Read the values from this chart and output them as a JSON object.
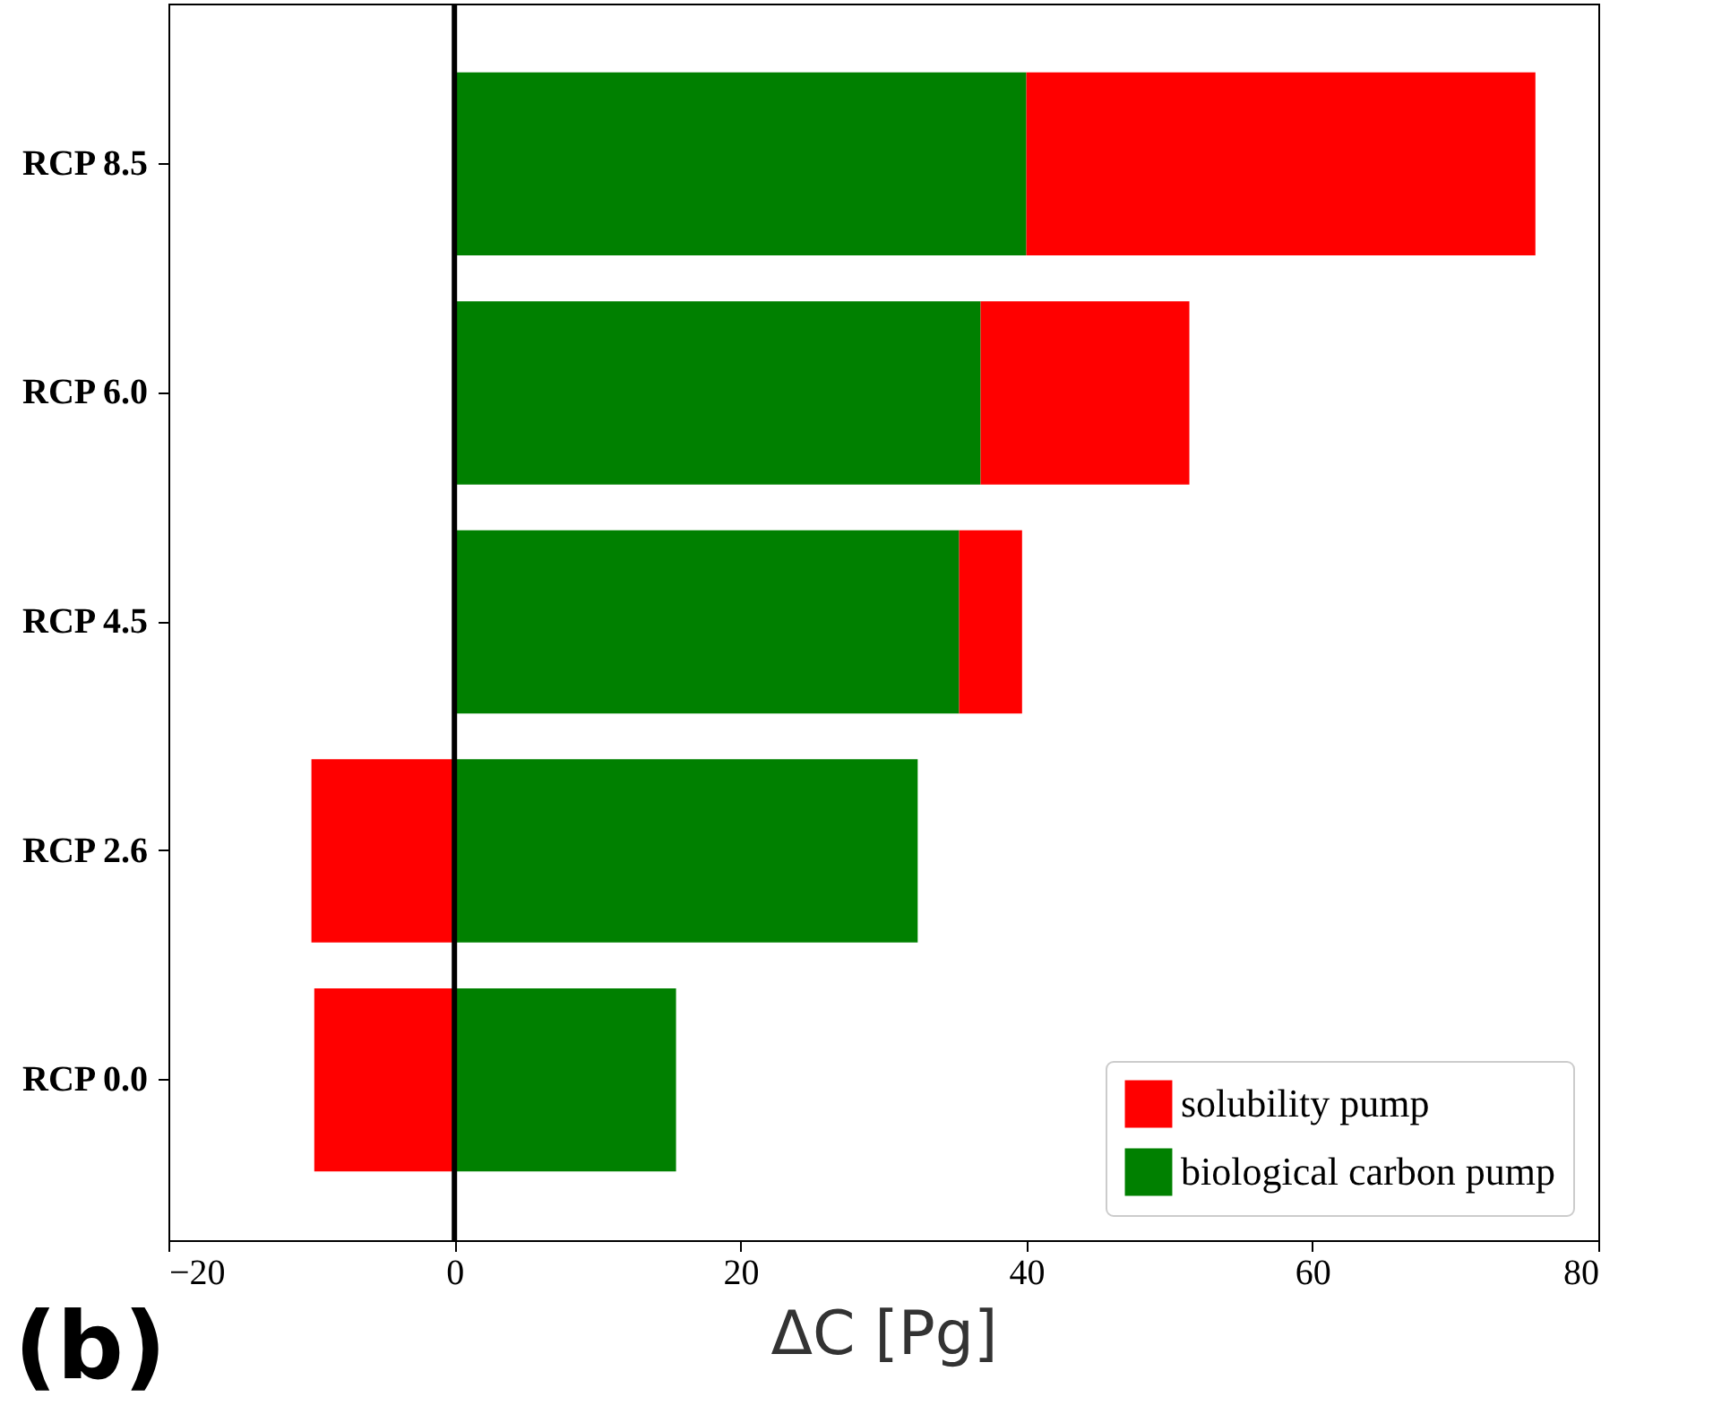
{
  "chart_data": {
    "type": "bar",
    "orientation": "horizontal",
    "stacked": true,
    "categories": [
      "RCP 8.5",
      "RCP 6.0",
      "RCP 4.5",
      "RCP 2.6",
      "RCP 0.0"
    ],
    "series": [
      {
        "name": "biological carbon pump",
        "color": "#008000",
        "values": [
          40.0,
          36.8,
          35.3,
          32.4,
          15.5
        ]
      },
      {
        "name": "solubility pump",
        "color": "#ff0000",
        "values": [
          35.6,
          14.6,
          4.4,
          -10.0,
          -9.8
        ]
      }
    ],
    "xlabel": "ΔC [Pg]",
    "xlim": [
      -20,
      80
    ],
    "xticks": [
      -20,
      0,
      20,
      40,
      60,
      80
    ],
    "ref_lines": [
      {
        "axis": "x",
        "value": 0,
        "color": "#000000"
      }
    ],
    "annotations": [
      "(b)"
    ],
    "legend": "bottom right",
    "grid": false
  }
}
